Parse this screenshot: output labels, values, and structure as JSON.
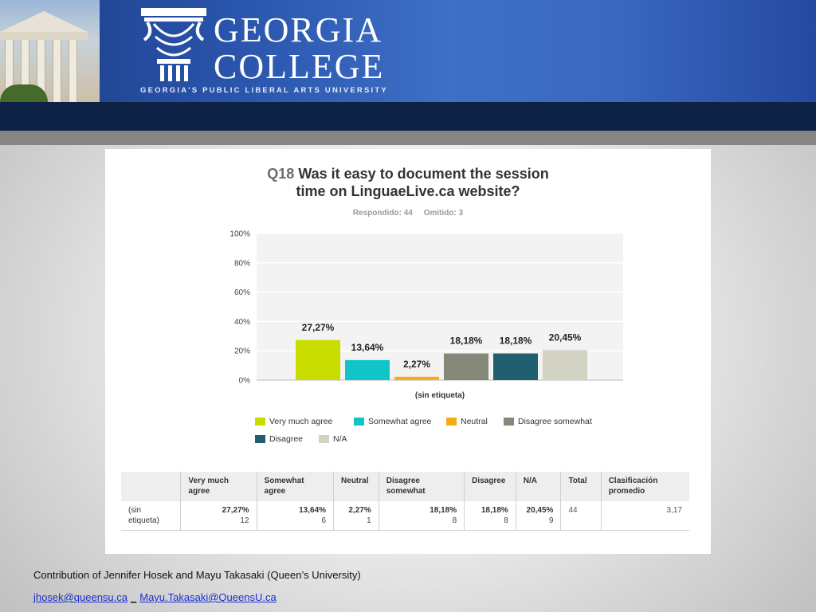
{
  "header": {
    "logo_line1": "GEORGIA",
    "logo_line2": "COLLEGE",
    "tagline": "GEORGIA'S PUBLIC LIBERAL ARTS UNIVERSITY"
  },
  "question": {
    "number": "Q18",
    "title_line1": "Was it easy to document the session",
    "title_line2": "time on LinguaeLive.ca website?",
    "answered": "Respondido: 44",
    "skipped": "Omitido: 3"
  },
  "chart_data": {
    "type": "bar",
    "categories": [
      "(sin etiqueta)"
    ],
    "xlabel": "(sin etiqueta)",
    "ylim": [
      0,
      100
    ],
    "y_ticks": [
      "0%",
      "20%",
      "40%",
      "60%",
      "80%",
      "100%"
    ],
    "grid": true,
    "legend_position": "bottom",
    "series": [
      {
        "name": "Very much agree",
        "value": 27.27,
        "label": "27,27%",
        "color": "#c8dc00"
      },
      {
        "name": "Somewhat agree",
        "value": 13.64,
        "label": "13,64%",
        "color": "#10c4c8"
      },
      {
        "name": "Neutral",
        "value": 2.27,
        "label": "2,27%",
        "color": "#f5ae12"
      },
      {
        "name": "Disagree somewhat",
        "value": 18.18,
        "label": "18,18%",
        "color": "#858878"
      },
      {
        "name": "Disagree",
        "value": 18.18,
        "label": "18,18%",
        "color": "#1f5f70"
      },
      {
        "name": "N/A",
        "value": 20.45,
        "label": "20,45%",
        "color": "#d3d3c3"
      }
    ]
  },
  "table": {
    "headers": [
      "",
      "Very much agree",
      "Somewhat agree",
      "Neutral",
      "Disagree somewhat",
      "Disagree",
      "N/A",
      "Total",
      "Clasificación promedio"
    ],
    "row": {
      "label": "(sin etiqueta)",
      "cells": [
        {
          "pct": "27,27%",
          "count": "12"
        },
        {
          "pct": "13,64%",
          "count": "6"
        },
        {
          "pct": "2,27%",
          "count": "1"
        },
        {
          "pct": "18,18%",
          "count": "8"
        },
        {
          "pct": "18,18%",
          "count": "8"
        },
        {
          "pct": "20,45%",
          "count": "9"
        }
      ],
      "total": "44",
      "average": "3,17"
    }
  },
  "footer": {
    "credit": "Contribution of Jennifer Hosek and Mayu  Takasaki (Queen’s University)",
    "link1": "jhosek@queensu.ca",
    "separator": "_",
    "link2": "Mayu.Takasaki@QueensU.ca"
  }
}
